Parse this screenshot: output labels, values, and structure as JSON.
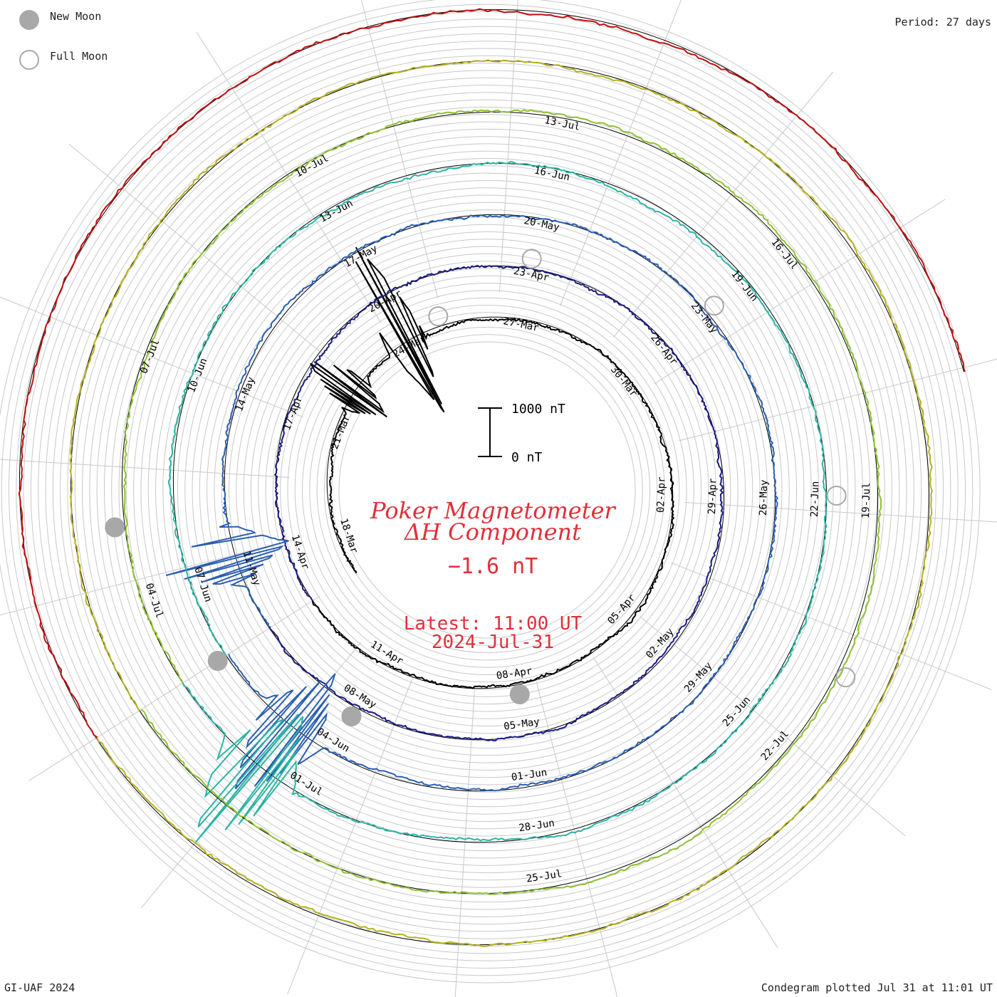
{
  "legend": {
    "new_moon": "New Moon",
    "full_moon": "Full Moon"
  },
  "period_label": "Period: 27 days",
  "credit": "GI-UAF 2024",
  "plotted": "Condegram plotted Jul 31 at 11:01 UT",
  "center": {
    "title_line1": "Poker Magnetometer",
    "title_line2": "ΔH Component",
    "value": "−1.6 nT",
    "latest_line1": "Latest: 11:00 UT",
    "latest_line2": "2024-Jul-31",
    "scale_top": "1000 nT",
    "scale_bottom": "0 nT"
  },
  "chart_data": {
    "type": "line",
    "chart_form": "spiral condegram (polar, one revolution per period)",
    "period_days": 27,
    "start": "2024-Mar-17",
    "end": "2024-Jul-31 11:00 UT",
    "latest_value_nT": -1.6,
    "scale_bar_nT": [
      0,
      1000
    ],
    "series": [
      {
        "color": "#000000",
        "tick_labels": [
          "18-Mar",
          "21-Mar",
          "24-Mar",
          "27-Mar",
          "30-Mar",
          "02-Apr",
          "05-Apr",
          "08-Apr",
          "11-Apr"
        ]
      },
      {
        "color": "#1c1a80",
        "tick_labels": [
          "14-Apr",
          "17-Apr",
          "20-Apr",
          "23-Apr",
          "26-Apr",
          "29-Apr",
          "02-May",
          "05-May",
          "08-May"
        ]
      },
      {
        "color": "#2a5fb0",
        "tick_labels": [
          "11-May",
          "14-May",
          "17-May",
          "20-May",
          "23-May",
          "26-May",
          "29-May",
          "01-Jun",
          "04-Jun"
        ]
      },
      {
        "color": "#2ab5a5",
        "tick_labels": [
          "07-Jun",
          "10-Jun",
          "13-Jun",
          "16-Jun",
          "19-Jun",
          "22-Jun",
          "25-Jun",
          "28-Jun",
          "01-Jul"
        ]
      },
      {
        "color": "#8fc030",
        "tick_labels": [
          "04-Jul",
          "07-Jul",
          "10-Jul",
          "13-Jul",
          "16-Jul",
          "19-Jul",
          "22-Jul",
          "25-Jul"
        ]
      },
      {
        "color": "#b5b020",
        "tick_labels": []
      },
      {
        "color": "#c01010",
        "tick_labels": []
      }
    ],
    "disturbances": [
      {
        "date": "2024-Mar-24",
        "approx_dH_nT": 1500
      },
      {
        "date": "2024-May-10",
        "approx_dH_nT": 1500
      },
      {
        "date": "2024-May-11",
        "approx_dH_nT": 1200
      }
    ],
    "moon_phases": {
      "new_moon": [
        "2024-Apr-08",
        "2024-May-08",
        "2024-Jun-06",
        "2024-Jul-05"
      ],
      "full_moon": [
        "2024-Mar-25",
        "2024-Apr-23",
        "2024-May-23",
        "2024-Jun-22",
        "2024-Jul-21"
      ]
    }
  }
}
